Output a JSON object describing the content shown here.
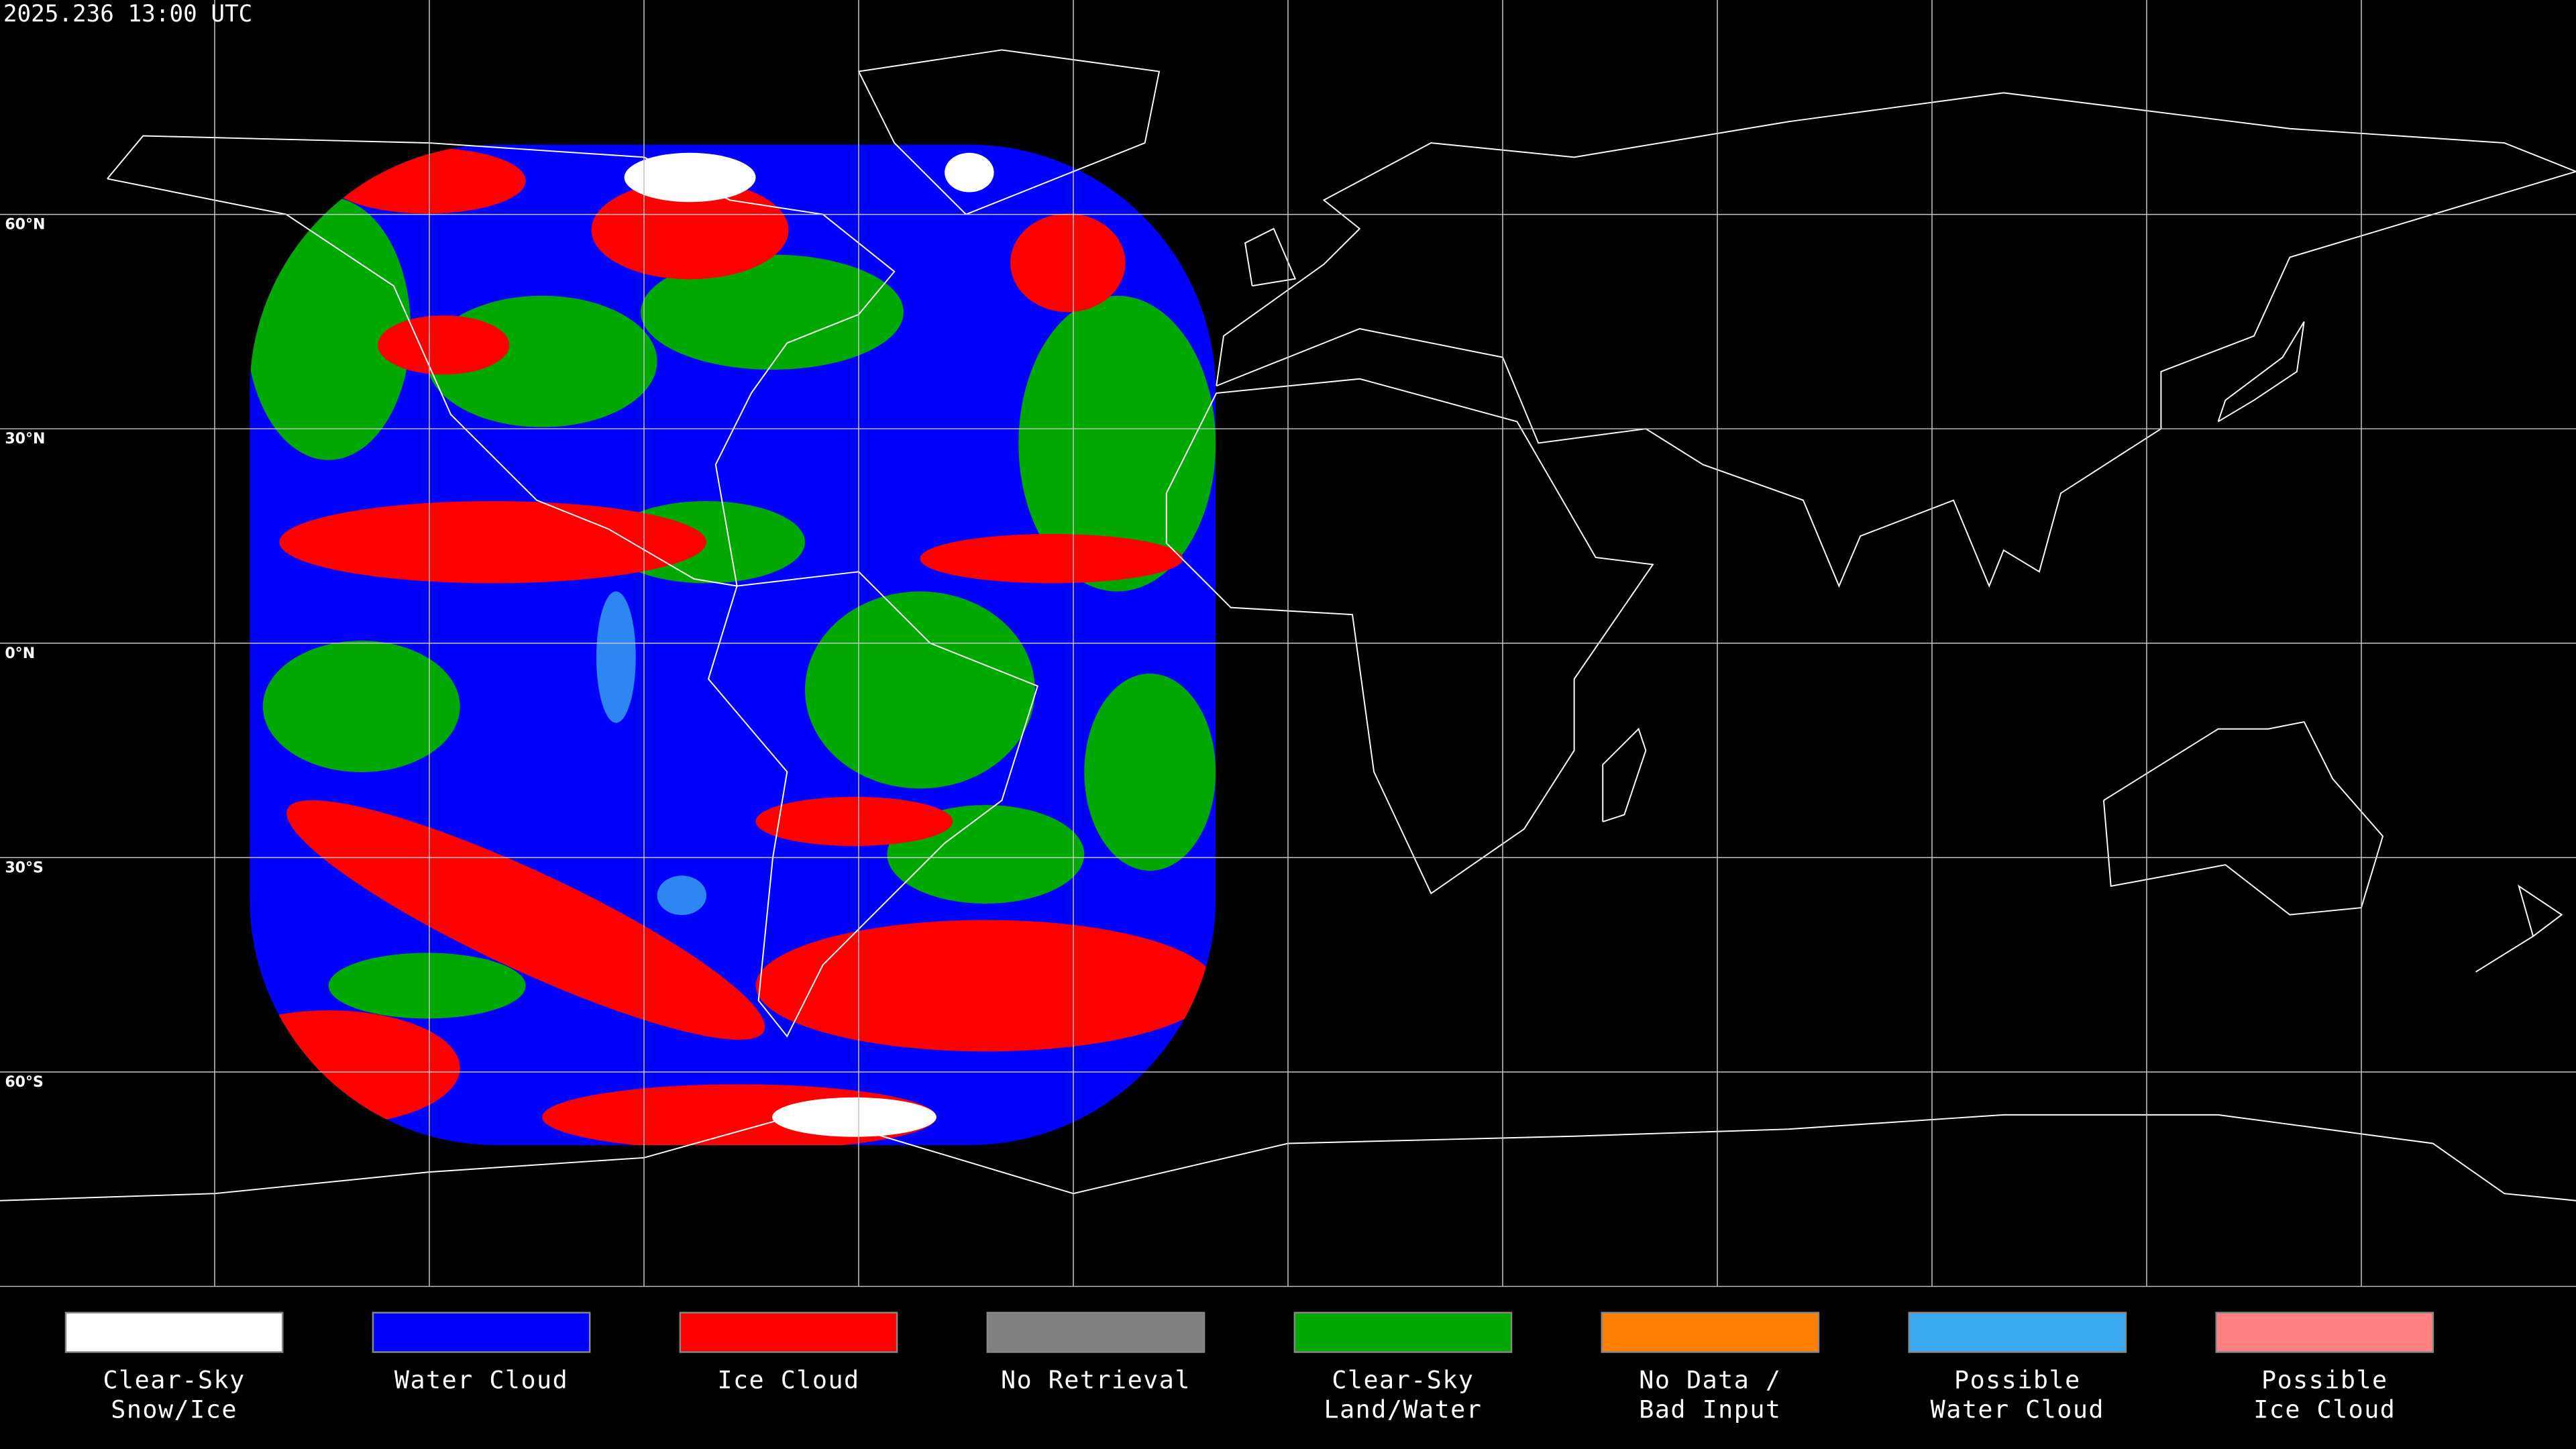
{
  "header": {
    "timestamp": "2025.236 13:00 UTC"
  },
  "map": {
    "lat_labels": [
      "60°N",
      "30°N",
      "0°N",
      "30°S",
      "60°S"
    ]
  },
  "legend": {
    "items": [
      {
        "lines": [
          "Clear-Sky",
          "Snow/Ice"
        ],
        "color": "#ffffff"
      },
      {
        "lines": [
          "Water Cloud"
        ],
        "color": "#0000ff"
      },
      {
        "lines": [
          "Ice Cloud"
        ],
        "color": "#ff0000"
      },
      {
        "lines": [
          "No Retrieval"
        ],
        "color": "#808080"
      },
      {
        "lines": [
          "Clear-Sky",
          "Land/Water"
        ],
        "color": "#00a800"
      },
      {
        "lines": [
          "No Data /",
          "Bad Input"
        ],
        "color": "#ff8000"
      },
      {
        "lines": [
          "Possible",
          "Water Cloud"
        ],
        "color": "#3aa8f0"
      },
      {
        "lines": [
          "Possible",
          "Ice Cloud"
        ],
        "color": "#ff8080"
      }
    ]
  }
}
